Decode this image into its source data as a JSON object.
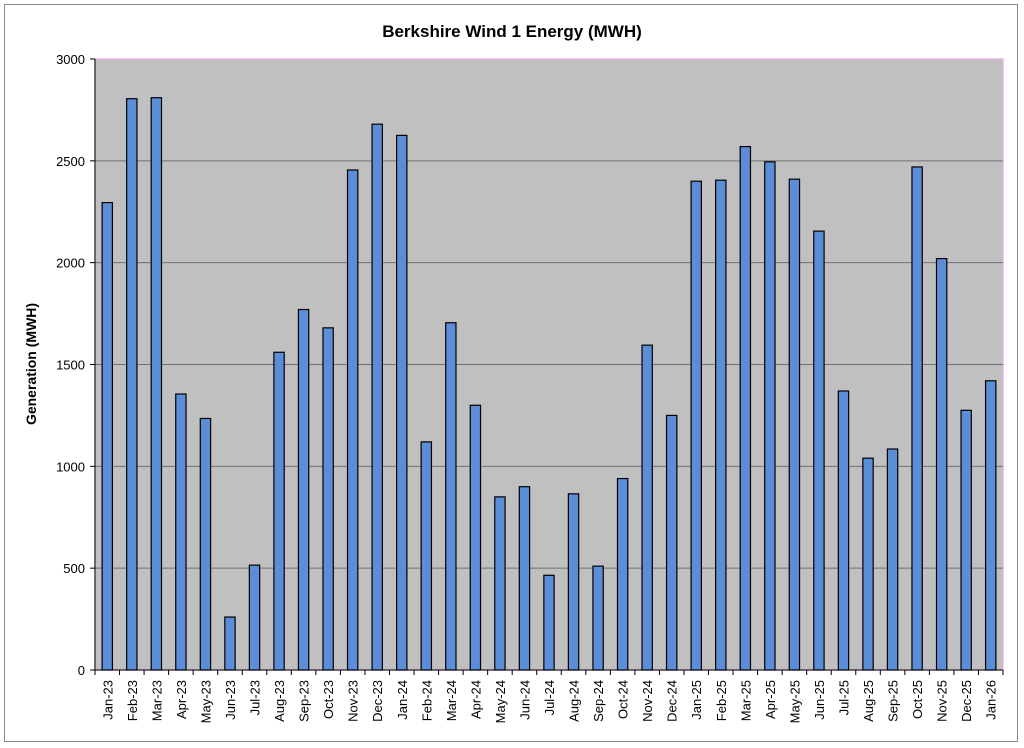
{
  "chart_data": {
    "type": "bar",
    "title": "Berkshire Wind 1 Energy (MWH)",
    "xlabel": "",
    "ylabel": "Generation (MWH)",
    "ylim": [
      0,
      3000
    ],
    "yticks": [
      0,
      500,
      1000,
      1500,
      2000,
      2500,
      3000
    ],
    "grid": true,
    "legend": "none",
    "colors": {
      "bar_fill": "#5b8ed6",
      "bar_stroke": "#000000",
      "plot_background": "#c0c0c0",
      "plot_border": "#e7b3e8",
      "gridline": "#707070"
    },
    "categories": [
      "Jan-23",
      "Feb-23",
      "Mar-23",
      "Apr-23",
      "May-23",
      "Jun-23",
      "Jul-23",
      "Aug-23",
      "Sep-23",
      "Oct-23",
      "Nov-23",
      "Dec-23",
      "Jan-24",
      "Feb-24",
      "Mar-24",
      "Apr-24",
      "May-24",
      "Jun-24",
      "Jul-24",
      "Aug-24",
      "Sep-24",
      "Oct-24",
      "Nov-24",
      "Dec-24",
      "Jan-25",
      "Feb-25",
      "Mar-25",
      "Apr-25",
      "May-25",
      "Jun-25",
      "Jul-25",
      "Aug-25",
      "Sep-25",
      "Oct-25",
      "Nov-25",
      "Dec-25",
      "Jan-26"
    ],
    "values": [
      2295,
      2805,
      2810,
      1355,
      1235,
      260,
      515,
      1560,
      1770,
      1680,
      2455,
      2680,
      2625,
      1120,
      1705,
      1300,
      850,
      900,
      465,
      865,
      510,
      940,
      1595,
      1250,
      2400,
      2405,
      2570,
      2495,
      2410,
      2155,
      1370,
      1040,
      1085,
      2470,
      2020,
      1275,
      1420
    ]
  }
}
